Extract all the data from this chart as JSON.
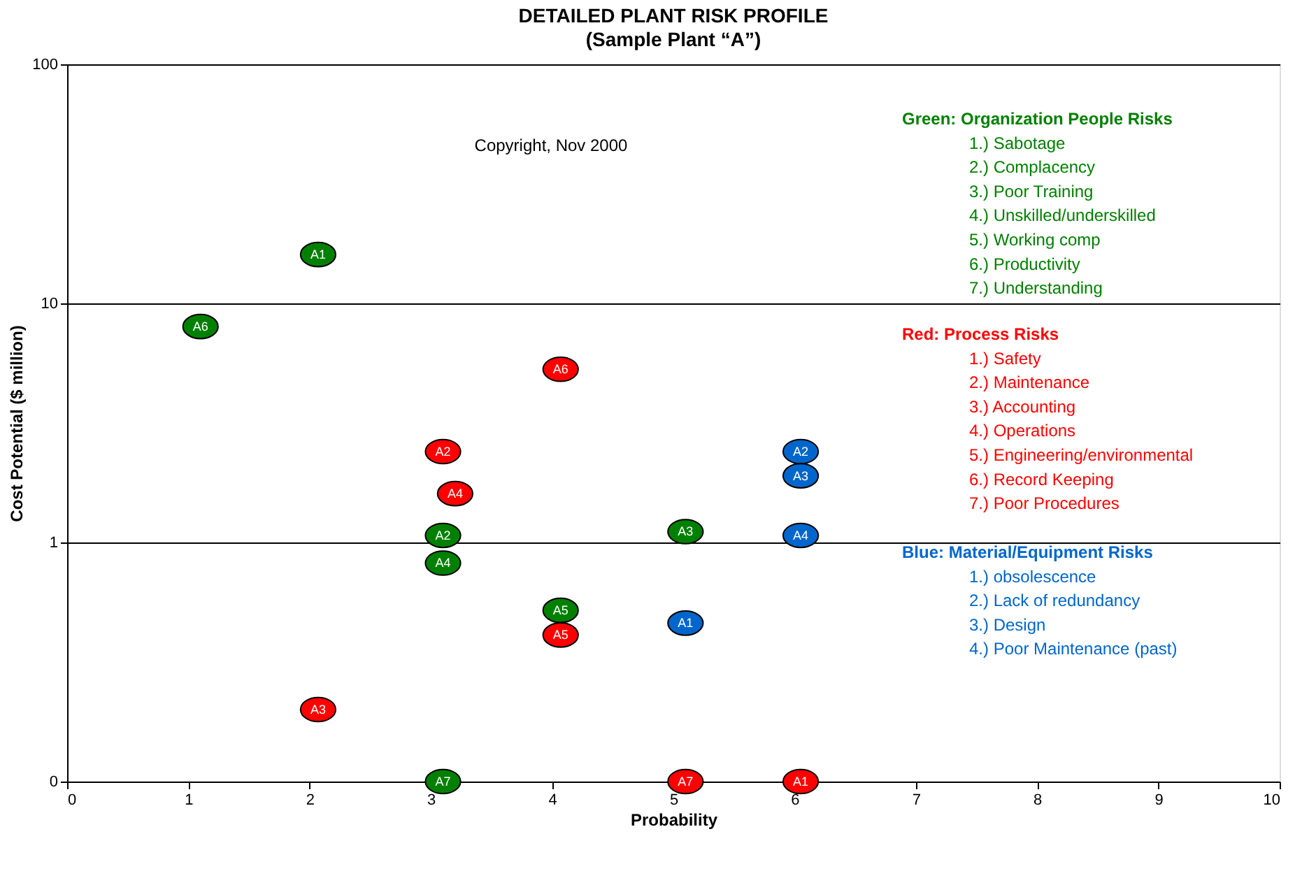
{
  "chart_data": {
    "type": "scatter",
    "title": "DETAILED PLANT RISK PROFILE",
    "subtitle": "(Sample Plant “A”)",
    "xlabel": "Probability",
    "ylabel": "Cost Potential ($ million)",
    "xlim": [
      0,
      10
    ],
    "xticks": [
      0,
      1,
      2,
      3,
      4,
      5,
      6,
      7,
      8,
      9,
      10
    ],
    "ylim": [
      0.1,
      100
    ],
    "yticks": [
      {
        "value": 0.1,
        "label": "0"
      },
      1,
      10,
      100
    ],
    "log": true,
    "grid": "y",
    "marker": "circle",
    "series": [
      {
        "name": "Green:  Organization People Risks\n1.)    Sabotage\n2.) Complacency\n3.) Poor Training\n4.) Unskilled/underskilled\n5.) Working comp\n6.) Productivity\n7.) Understanding",
        "color": "#008000",
        "x": [
          2.07,
          3.1,
          5.1,
          3.1,
          4.07,
          1.1,
          3.1
        ],
        "values": [
          16,
          1.07,
          1.11,
          0.82,
          0.52,
          8,
          0.1
        ],
        "value_labels": [
          "A1",
          "A2",
          "A3",
          "A4",
          "A5",
          "A6",
          "A7"
        ]
      },
      {
        "name": "Red:  Process Risks\n1.) Safety\n2.) Maintenance\n3.) Accounting\n4.) Operations\n5.) Engineering/environmental\n6.) Record Keeping\n7.) Poor Procedures",
        "color": "#ff0000",
        "x": [
          6.05,
          3.1,
          2.07,
          3.2,
          4.07,
          4.07,
          5.1
        ],
        "values": [
          0.1,
          2.4,
          0.2,
          1.6,
          0.41,
          5.3,
          0.1
        ],
        "value_labels": [
          "A1",
          "A2",
          "A3",
          "A4",
          "A5",
          "A6",
          "A7"
        ]
      },
      {
        "name": "Blue:  Material/Equipment Risks\n1.) obsolescence\n2.) Lack of redundancy\n3.) Design\n4.) Poor Maintenance (past)",
        "color": "#0066cc",
        "x": [
          5.1,
          6.05,
          6.05,
          6.05
        ],
        "values": [
          0.46,
          2.4,
          1.9,
          1.07
        ],
        "value_labels": [
          "A1",
          "A2",
          "A3",
          "A4"
        ]
      }
    ],
    "annotations": [
      "Copyright, Nov 2000"
    ]
  }
}
